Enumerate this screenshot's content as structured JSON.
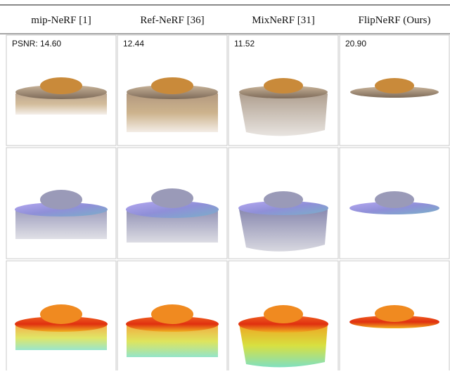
{
  "columns": [
    "mip-NeRF [1]",
    "Ref-NeRF [36]",
    "MixNeRF [31]",
    "FlipNeRF (Ours)"
  ],
  "psnr_labels": [
    "PSNR: 14.60",
    "12.44",
    "11.52",
    "20.90"
  ]
}
